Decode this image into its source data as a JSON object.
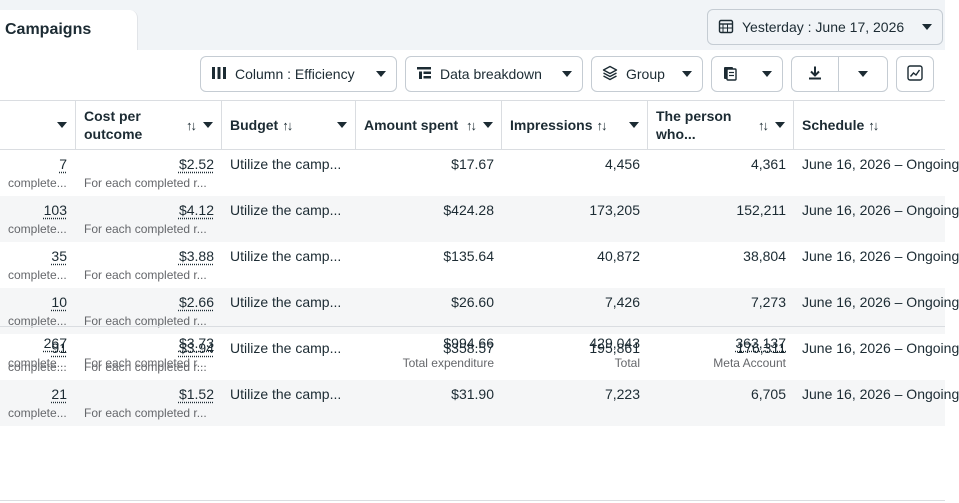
{
  "tab": {
    "label": "Campaigns"
  },
  "date_picker": {
    "label": "Yesterday : June 17, 2026",
    "icon": "calendar-icon"
  },
  "toolbar": {
    "columns_label": "Column : Efficiency",
    "breakdown_label": "Data breakdown",
    "group_label": "Group"
  },
  "headers": {
    "cost_per_outcome": "Cost per outcome",
    "budget": "Budget",
    "amount_spent": "Amount spent",
    "impressions": "Impressions",
    "person_who": "The person who...",
    "schedule": "Schedule"
  },
  "sort_glyph": "↑↓",
  "rows": [
    {
      "results": "7",
      "results_sub": "complete...",
      "cpo": "$2.52",
      "cpo_sub": "For each completed r...",
      "budget": "Utilize the camp...",
      "amount": "$17.67",
      "impressions": "4,456",
      "person": "4,361",
      "schedule": "June 16, 2026 – Ongoing"
    },
    {
      "results": "103",
      "results_sub": "complete...",
      "cpo": "$4.12",
      "cpo_sub": "For each completed r...",
      "budget": "Utilize the camp...",
      "amount": "$424.28",
      "impressions": "173,205",
      "person": "152,211",
      "schedule": "June 16, 2026 – Ongoing"
    },
    {
      "results": "35",
      "results_sub": "complete...",
      "cpo": "$3.88",
      "cpo_sub": "For each completed r...",
      "budget": "Utilize the camp...",
      "amount": "$135.64",
      "impressions": "40,872",
      "person": "38,804",
      "schedule": "June 16, 2026 – Ongoing"
    },
    {
      "results": "10",
      "results_sub": "complete...",
      "cpo": "$2.66",
      "cpo_sub": "For each completed r...",
      "budget": "Utilize the camp...",
      "amount": "$26.60",
      "impressions": "7,426",
      "person": "7,273",
      "schedule": "June 16, 2026 – Ongoing"
    },
    {
      "results": "91",
      "results_sub": "complete...",
      "cpo": "$3.94",
      "cpo_sub": "For each completed r...",
      "budget": "Utilize the camp...",
      "amount": "$358.57",
      "impressions": "195,861",
      "person": "176,311",
      "schedule": "June 16, 2026 – Ongoing"
    },
    {
      "results": "21",
      "results_sub": "complete...",
      "cpo": "$1.52",
      "cpo_sub": "For each completed r...",
      "budget": "Utilize the camp...",
      "amount": "$31.90",
      "impressions": "7,223",
      "person": "6,705",
      "schedule": "June 16, 2026 – Ongoing"
    }
  ],
  "totals": {
    "results": "267",
    "results_sub": "complete...",
    "cpo": "$3.73",
    "cpo_sub": "For each completed r...",
    "amount": "$994.66",
    "amount_sub": "Total expenditure",
    "impressions": "429,043",
    "impressions_sub": "Total",
    "person": "363,137",
    "person_sub": "Meta Account"
  }
}
